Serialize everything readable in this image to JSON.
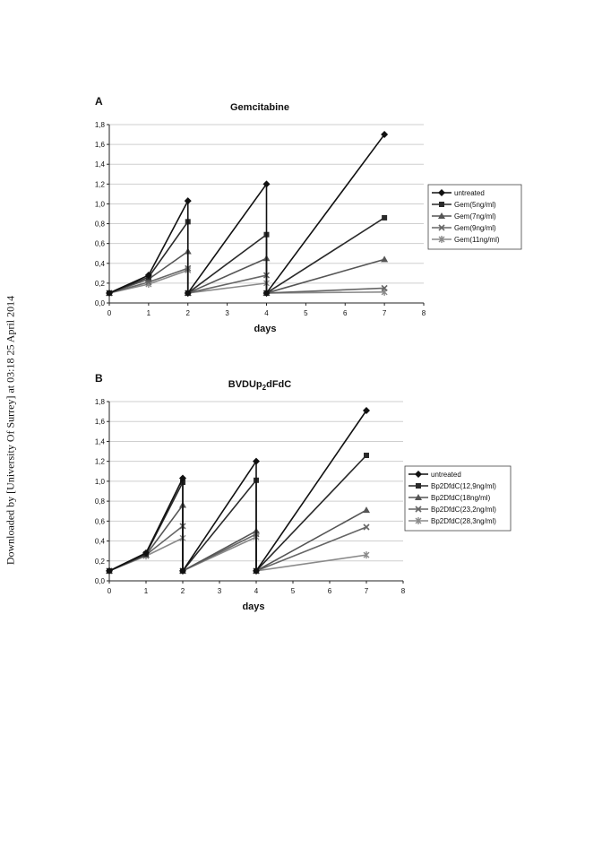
{
  "watermark": "Downloaded by [University Of Surrey] at 03:18 25 April 2014",
  "colors": {
    "gridline": "#cfcfcf",
    "series": [
      "#111111",
      "#2a2a2a",
      "#555555",
      "#666666",
      "#8a8a8a"
    ]
  },
  "chart_data": [
    {
      "type": "line",
      "panel": "A",
      "title": "Gemcitabine",
      "title_sub": "",
      "title_rest": "",
      "xlabel": "days",
      "ylabel": "",
      "xlim": [
        0,
        8
      ],
      "ylim": [
        0,
        1.8
      ],
      "xticks": [
        "0",
        "1",
        "2",
        "3",
        "4",
        "5",
        "6",
        "7",
        "8"
      ],
      "yticks": [
        "0,0",
        "0,2",
        "0,4",
        "0,6",
        "0,8",
        "1,0",
        "1,2",
        "1,4",
        "1,6",
        "1,8"
      ],
      "grid": "horizontal",
      "legend_position": "right",
      "series": [
        {
          "name": "untreated",
          "marker": "diamond",
          "segments": [
            [
              [
                0,
                0.1
              ],
              [
                1,
                0.28
              ],
              [
                2,
                1.03
              ]
            ],
            [
              [
                2,
                0.1
              ],
              [
                4,
                1.2
              ]
            ],
            [
              [
                4,
                0.1
              ],
              [
                7,
                1.7
              ]
            ]
          ]
        },
        {
          "name": "Gem(5ng/ml)",
          "marker": "square",
          "segments": [
            [
              [
                0,
                0.1
              ],
              [
                1,
                0.26
              ],
              [
                2,
                0.82
              ]
            ],
            [
              [
                2,
                0.1
              ],
              [
                4,
                0.69
              ]
            ],
            [
              [
                4,
                0.1
              ],
              [
                7,
                0.86
              ]
            ]
          ]
        },
        {
          "name": "Gem(7ng/ml)",
          "marker": "triangle",
          "segments": [
            [
              [
                0,
                0.1
              ],
              [
                1,
                0.24
              ],
              [
                2,
                0.52
              ]
            ],
            [
              [
                2,
                0.1
              ],
              [
                4,
                0.45
              ]
            ],
            [
              [
                4,
                0.1
              ],
              [
                7,
                0.44
              ]
            ]
          ]
        },
        {
          "name": "Gem(9ng/ml)",
          "marker": "x",
          "segments": [
            [
              [
                0,
                0.1
              ],
              [
                1,
                0.21
              ],
              [
                2,
                0.35
              ]
            ],
            [
              [
                2,
                0.1
              ],
              [
                4,
                0.28
              ]
            ],
            [
              [
                4,
                0.1
              ],
              [
                7,
                0.15
              ]
            ]
          ]
        },
        {
          "name": "Gem(11ng/ml)",
          "marker": "star",
          "segments": [
            [
              [
                0,
                0.1
              ],
              [
                1,
                0.19
              ],
              [
                2,
                0.33
              ]
            ],
            [
              [
                2,
                0.1
              ],
              [
                4,
                0.2
              ]
            ],
            [
              [
                4,
                0.1
              ],
              [
                7,
                0.11
              ]
            ]
          ]
        }
      ]
    },
    {
      "type": "line",
      "panel": "B",
      "title": "BVDUp",
      "title_sub": "2",
      "title_rest": "dFdC",
      "xlabel": "days",
      "ylabel": "",
      "xlim": [
        0,
        8
      ],
      "ylim": [
        0,
        1.8
      ],
      "xticks": [
        "0",
        "1",
        "2",
        "3",
        "4",
        "5",
        "6",
        "7",
        "8"
      ],
      "yticks": [
        "0,0",
        "0,2",
        "0,4",
        "0,6",
        "0,8",
        "1,0",
        "1,2",
        "1,4",
        "1,6",
        "1,8"
      ],
      "grid": "horizontal",
      "legend_position": "right",
      "series": [
        {
          "name": "untreated",
          "marker": "diamond",
          "segments": [
            [
              [
                0,
                0.1
              ],
              [
                1,
                0.28
              ],
              [
                2,
                1.03
              ]
            ],
            [
              [
                2,
                0.1
              ],
              [
                4,
                1.2
              ]
            ],
            [
              [
                4,
                0.1
              ],
              [
                7,
                1.71
              ]
            ]
          ]
        },
        {
          "name": "Bp2DfdC(12,9ng/ml)",
          "marker": "square",
          "segments": [
            [
              [
                0,
                0.1
              ],
              [
                1,
                0.27
              ],
              [
                2,
                0.99
              ]
            ],
            [
              [
                2,
                0.1
              ],
              [
                4,
                1.01
              ]
            ],
            [
              [
                4,
                0.1
              ],
              [
                7,
                1.26
              ]
            ]
          ]
        },
        {
          "name": "Bp2DfdC(18ng/ml)",
          "marker": "triangle",
          "segments": [
            [
              [
                0,
                0.1
              ],
              [
                1,
                0.26
              ],
              [
                2,
                0.76
              ]
            ],
            [
              [
                2,
                0.1
              ],
              [
                4,
                0.5
              ]
            ],
            [
              [
                4,
                0.1
              ],
              [
                7,
                0.71
              ]
            ]
          ]
        },
        {
          "name": "Bp2DfdC(23,2ng/ml)",
          "marker": "x",
          "segments": [
            [
              [
                0,
                0.1
              ],
              [
                1,
                0.26
              ],
              [
                2,
                0.55
              ]
            ],
            [
              [
                2,
                0.1
              ],
              [
                4,
                0.47
              ]
            ],
            [
              [
                4,
                0.1
              ],
              [
                7,
                0.54
              ]
            ]
          ]
        },
        {
          "name": "Bp2DfdC(28,3ng/ml)",
          "marker": "star",
          "segments": [
            [
              [
                0,
                0.1
              ],
              [
                1,
                0.25
              ],
              [
                2,
                0.43
              ]
            ],
            [
              [
                2,
                0.1
              ],
              [
                4,
                0.44
              ]
            ],
            [
              [
                4,
                0.1
              ],
              [
                7,
                0.26
              ]
            ]
          ]
        }
      ]
    }
  ]
}
